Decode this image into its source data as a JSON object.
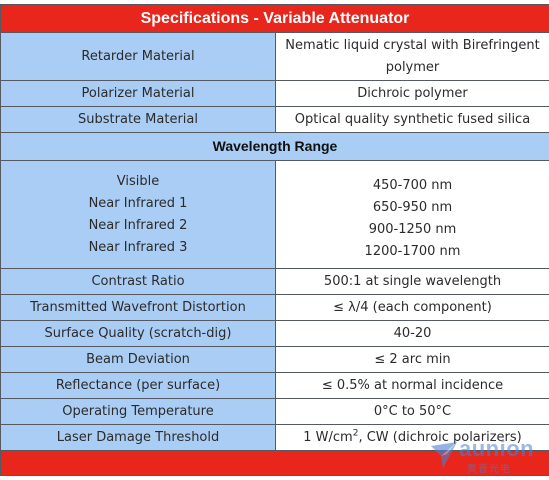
{
  "title": "Specifications - Variable Attenuator",
  "rows_top": [
    {
      "label": [
        "Retarder Material"
      ],
      "value": [
        "Nematic liquid crystal with Birefringent",
        "polymer"
      ]
    },
    {
      "label": [
        "Polarizer Material"
      ],
      "value": [
        "Dichroic polymer"
      ]
    },
    {
      "label": [
        "Substrate Material"
      ],
      "value": [
        "Optical quality synthetic fused silica"
      ]
    }
  ],
  "section_title": "Wavelength Range",
  "wavelength": {
    "labels": [
      "Visible",
      "Near Infrared 1",
      "Near Infrared 2",
      "Near Infrared 3"
    ],
    "values": [
      "450-700 nm",
      "650-950 nm",
      "900-1250 nm",
      "1200-1700 nm"
    ]
  },
  "rows_bottom": [
    {
      "label": "Contrast Ratio",
      "value": "500:1 at single wavelength"
    },
    {
      "label": "Transmitted Wavefront Distortion",
      "value": "≤ λ/4 (each component)"
    },
    {
      "label": "Surface Quality (scratch-dig)",
      "value": "40-20"
    },
    {
      "label": "Beam Deviation",
      "value": "≤ 2 arc min"
    },
    {
      "label": "Reflectance (per surface)",
      "value": "≤ 0.5% at normal incidence"
    },
    {
      "label": "Operating Temperature",
      "value": "0°C to 50°C"
    },
    {
      "label": "Laser Damage Threshold",
      "value_pre": "1 W/cm",
      "value_sup": "2",
      "value_post": ", CW (dichroic polarizers)"
    }
  ],
  "watermark": {
    "word": "aunion",
    "sub": "奥普光电"
  },
  "colors": {
    "header": "#e8261c",
    "label_bg": "#a9cdf4",
    "border": "#555a60",
    "logo": "#4f7fd0"
  }
}
